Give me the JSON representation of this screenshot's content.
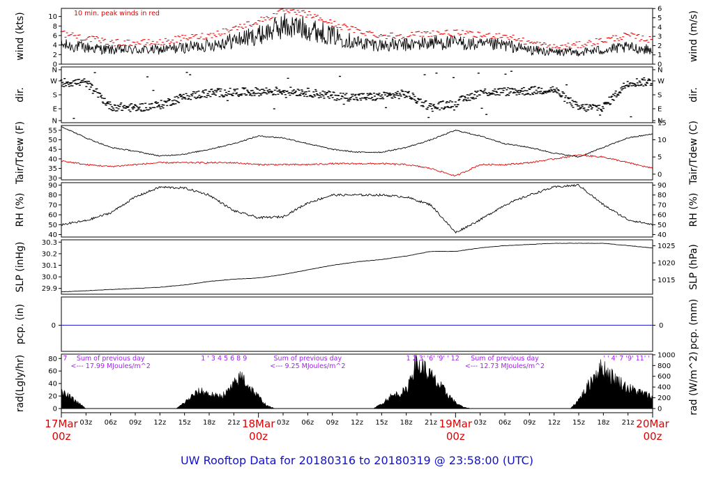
{
  "title": "UW Rooftop Data for 20180316  to  20180319 @ 23:58:00  (UTC)",
  "colors": {
    "series": "#000000",
    "peak": "#e00000",
    "dew": "#e00000",
    "precip": "#2020d0",
    "annotation": "#a020f0",
    "date": "#e00000",
    "title": "#1010cc"
  },
  "time_axis": {
    "hour_ticks": [
      "03z",
      "06z",
      "09z",
      "12z",
      "15z",
      "18z",
      "21z",
      "03z",
      "06z",
      "09z",
      "12z",
      "15z",
      "18z",
      "21z",
      "03z",
      "06z",
      "09z",
      "12z",
      "15z",
      "18z",
      "21z"
    ],
    "date_labels": [
      {
        "date": "17Mar",
        "hour": "00z"
      },
      {
        "date": "18Mar",
        "hour": "00z"
      },
      {
        "date": "19Mar",
        "hour": "00z"
      },
      {
        "date": "20Mar",
        "hour": "00z"
      }
    ]
  },
  "chart_data": [
    {
      "type": "line",
      "name": "wind",
      "ylabel_left": "wind (kts)",
      "ylabel_right": "wind (m/s)",
      "ylim": [
        0,
        11.7
      ],
      "left_ticks": [
        "0",
        "2",
        "4",
        "6",
        "8",
        "10"
      ],
      "right_ticks": [
        "0",
        "1",
        "2",
        "3",
        "4",
        "5",
        "6"
      ],
      "annotation": "10 min. peak winds in red",
      "x_hours": [
        0,
        3,
        6,
        9,
        12,
        15,
        18,
        21,
        24,
        27,
        30,
        33,
        36,
        39,
        42,
        45,
        48,
        51,
        54,
        57,
        60,
        63,
        66,
        69,
        72
      ],
      "speed_kts": [
        4,
        3.5,
        3,
        3,
        3,
        3.5,
        4,
        5,
        6,
        8,
        7.5,
        6,
        4.5,
        4,
        4,
        4.5,
        4.5,
        4,
        4,
        3,
        2.5,
        2.5,
        3,
        3.5,
        3
      ],
      "peak_kts": [
        6.5,
        5.5,
        4.5,
        4.5,
        4.5,
        5.5,
        6,
        7.5,
        9,
        11,
        10.5,
        8.5,
        7,
        6,
        6,
        6.5,
        6.5,
        6,
        6,
        4.5,
        3.5,
        4,
        5,
        6,
        5
      ]
    },
    {
      "type": "scatter",
      "name": "dir",
      "ylabel_left": "dir.",
      "ylabel_right": "dir.",
      "left_ticks": [
        "N",
        "E",
        "S",
        "W",
        "N"
      ],
      "right_ticks": [
        "N",
        "E",
        "S",
        "W",
        "N"
      ],
      "x_hours": [
        0,
        3,
        6,
        9,
        12,
        15,
        18,
        21,
        24,
        27,
        30,
        33,
        36,
        39,
        42,
        45,
        48,
        51,
        54,
        57,
        60,
        63,
        66,
        69,
        72
      ],
      "dir_deg": [
        270,
        270,
        100,
        90,
        110,
        170,
        195,
        200,
        205,
        210,
        200,
        175,
        165,
        170,
        190,
        95,
        125,
        200,
        205,
        210,
        220,
        90,
        95,
        270,
        275
      ]
    },
    {
      "type": "line",
      "name": "temperature",
      "ylabel_left": "Tair/Tdew (F)",
      "ylabel_right": "Tair/Tdew (C)",
      "ylim": [
        29,
        57.5
      ],
      "left_ticks": [
        "30",
        "35",
        "40",
        "45",
        "50",
        "55"
      ],
      "right_ticks": [
        "0",
        "5",
        "10",
        "15"
      ],
      "x_hours": [
        0,
        3,
        6,
        9,
        12,
        15,
        18,
        21,
        24,
        27,
        30,
        33,
        36,
        39,
        42,
        45,
        48,
        51,
        54,
        57,
        60,
        63,
        66,
        69,
        72
      ],
      "tair_f": [
        57,
        51,
        46,
        44,
        41.5,
        42.5,
        45,
        48,
        52,
        51,
        48,
        45,
        43.5,
        43.5,
        46,
        50,
        55,
        52,
        48,
        46,
        43,
        41,
        46,
        51,
        53
      ],
      "tdew_f": [
        39,
        37,
        36,
        37,
        38,
        38,
        38,
        38,
        37,
        37,
        37,
        37.5,
        37.5,
        37.5,
        37,
        35,
        31,
        37,
        37,
        38,
        40,
        42,
        41,
        38,
        35
      ]
    },
    {
      "type": "line",
      "name": "rh",
      "ylabel_left": "RH (%)",
      "ylabel_right": "RH (%)",
      "ylim": [
        37.5,
        92.5
      ],
      "left_ticks": [
        "40",
        "50",
        "60",
        "70",
        "80",
        "90"
      ],
      "right_ticks": [
        "40",
        "50",
        "60",
        "70",
        "80",
        "90"
      ],
      "x_hours": [
        0,
        3,
        6,
        9,
        12,
        15,
        18,
        21,
        24,
        27,
        30,
        33,
        36,
        39,
        42,
        45,
        48,
        51,
        54,
        57,
        60,
        63,
        66,
        69,
        72
      ],
      "rh_pct": [
        50,
        54,
        62,
        78,
        88,
        87,
        80,
        64,
        57,
        58,
        72,
        80,
        80,
        80,
        78,
        70,
        42,
        55,
        70,
        80,
        88,
        90,
        70,
        55,
        50
      ]
    },
    {
      "type": "line",
      "name": "slp",
      "ylabel_left": "SLP (inHg)",
      "ylabel_right": "SLP (hPa)",
      "ylim": [
        29.85,
        30.32
      ],
      "left_ticks": [
        "29.9",
        "30.0",
        "30.1",
        "30.2",
        "30.3"
      ],
      "right_ticks": [
        "1015",
        "1020",
        "1025"
      ],
      "x_hours": [
        0,
        3,
        6,
        9,
        12,
        15,
        18,
        21,
        24,
        27,
        30,
        33,
        36,
        39,
        42,
        45,
        48,
        51,
        54,
        57,
        60,
        63,
        66,
        69,
        72
      ],
      "slp_inhg": [
        29.87,
        29.88,
        29.89,
        29.9,
        29.91,
        29.93,
        29.96,
        29.98,
        29.99,
        30.02,
        30.06,
        30.1,
        30.13,
        30.15,
        30.18,
        30.22,
        30.22,
        30.25,
        30.27,
        30.28,
        30.29,
        30.29,
        30.29,
        30.27,
        30.25
      ]
    },
    {
      "type": "line",
      "name": "precip",
      "ylabel_left": "pcp. (in)",
      "ylabel_right": "pcp. (mm)",
      "left_ticks": [
        "0"
      ],
      "right_ticks": [
        "0"
      ],
      "value": 0
    },
    {
      "type": "area",
      "name": "radiation",
      "ylabel_left": "rad(Lgly/hr)",
      "ylabel_right": "rad (W/m^2)",
      "ylim": [
        0,
        87
      ],
      "left_ticks": [
        "0",
        "20",
        "40",
        "60",
        "80"
      ],
      "right_ticks": [
        "0",
        "200",
        "400",
        "600",
        "800",
        "1000"
      ],
      "x_hours": [
        0,
        1,
        2,
        3,
        14,
        15,
        16,
        17,
        18,
        19,
        20,
        21,
        22,
        23,
        24,
        25,
        26,
        38,
        39,
        40,
        41,
        42,
        43,
        44,
        45,
        46,
        47,
        48,
        49,
        50,
        62,
        63,
        64,
        65,
        66,
        67,
        68,
        69,
        70,
        71,
        72
      ],
      "rad_lgly": [
        27,
        20,
        10,
        0,
        0,
        10,
        22,
        30,
        25,
        20,
        25,
        40,
        55,
        35,
        20,
        5,
        0,
        0,
        8,
        20,
        25,
        30,
        75,
        70,
        55,
        40,
        25,
        10,
        2,
        0,
        0,
        15,
        35,
        60,
        70,
        55,
        45,
        35,
        30,
        25,
        20
      ],
      "hour_markers": [
        {
          "labels": "7",
          "hour": 0.2
        },
        {
          "labels": "1 ' 3 4 5 6 8 9",
          "hour": 17
        },
        {
          "labels": "1 2 3' '6' '9' ' 12",
          "hour": 42
        },
        {
          "labels": "' ' 4' 7 '9' 11' '",
          "hour": 66
        }
      ],
      "daily_sums": [
        {
          "line1": "Sum of previous day",
          "line2": "<--- 17.99 MJoules/m^2",
          "hour": 6
        },
        {
          "line1": "Sum of previous day",
          "line2": "<--- 9.25 MJoules/m^2",
          "hour": 30
        },
        {
          "line1": "Sum of previous day",
          "line2": "<--- 12.73 MJoules/m^2",
          "hour": 54
        }
      ]
    }
  ]
}
